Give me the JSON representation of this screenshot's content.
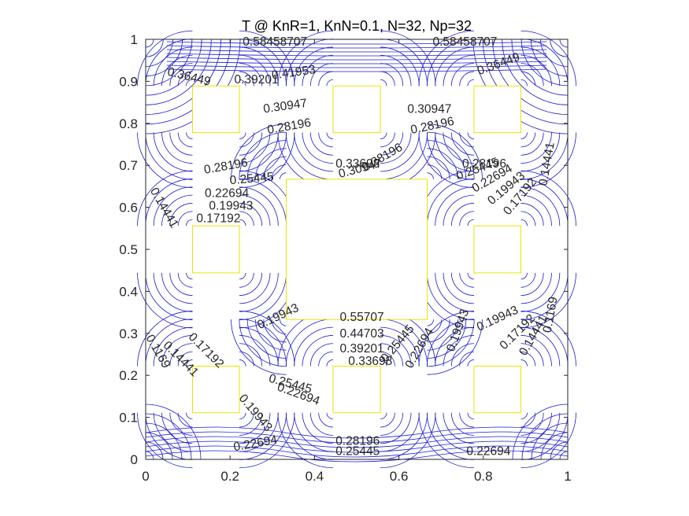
{
  "chart_data": {
    "type": "contour",
    "title": "T @ KnR=1, KnN=0.1, N=32, Np=32",
    "xlim": [
      0,
      1
    ],
    "ylim": [
      0,
      1
    ],
    "xticks": [
      0,
      0.2,
      0.4,
      0.6,
      0.8,
      1
    ],
    "yticks": [
      0,
      0.1,
      0.2,
      0.3,
      0.4,
      0.5,
      0.6,
      0.7,
      0.8,
      0.9,
      1
    ],
    "xtick_labels": [
      "0",
      "0.2",
      "0.4",
      "0.6",
      "0.8",
      "1"
    ],
    "ytick_labels": [
      "0",
      "0.1",
      "0.2",
      "0.3",
      "0.4",
      "0.5",
      "0.6",
      "0.7",
      "0.8",
      "0.9",
      "1"
    ],
    "contour_color": "#1a1ad0",
    "boundary_color": "#e6e600",
    "holes": [
      {
        "x0": 0.111,
        "x1": 0.222,
        "y0": 0.778,
        "y1": 0.889
      },
      {
        "x0": 0.444,
        "x1": 0.556,
        "y0": 0.778,
        "y1": 0.889
      },
      {
        "x0": 0.778,
        "x1": 0.889,
        "y0": 0.778,
        "y1": 0.889
      },
      {
        "x0": 0.111,
        "x1": 0.222,
        "y0": 0.444,
        "y1": 0.556
      },
      {
        "x0": 0.333,
        "x1": 0.667,
        "y0": 0.333,
        "y1": 0.667
      },
      {
        "x0": 0.778,
        "x1": 0.889,
        "y0": 0.444,
        "y1": 0.556
      },
      {
        "x0": 0.111,
        "x1": 0.222,
        "y0": 0.111,
        "y1": 0.222
      },
      {
        "x0": 0.444,
        "x1": 0.556,
        "y0": 0.111,
        "y1": 0.222
      },
      {
        "x0": 0.778,
        "x1": 0.889,
        "y0": 0.111,
        "y1": 0.222
      }
    ],
    "contour_labels": [
      {
        "text": "0.58458707",
        "x": 0.23,
        "y": 0.985,
        "angle": 0
      },
      {
        "text": "0.58458707",
        "x": 0.68,
        "y": 0.985,
        "angle": 0
      },
      {
        "text": "0.36449",
        "x": 0.05,
        "y": 0.915,
        "angle": 14
      },
      {
        "text": "0.39201",
        "x": 0.21,
        "y": 0.895,
        "angle": 0
      },
      {
        "text": "0.41953",
        "x": 0.3,
        "y": 0.905,
        "angle": -8
      },
      {
        "text": "0.30947",
        "x": 0.28,
        "y": 0.825,
        "angle": -8
      },
      {
        "text": "0.28196",
        "x": 0.29,
        "y": 0.775,
        "angle": -10
      },
      {
        "text": "0.30947",
        "x": 0.62,
        "y": 0.825,
        "angle": 0
      },
      {
        "text": "0.28196",
        "x": 0.63,
        "y": 0.775,
        "angle": -12
      },
      {
        "text": "0.36449",
        "x": 0.79,
        "y": 0.915,
        "angle": -20
      },
      {
        "text": "0.28196",
        "x": 0.14,
        "y": 0.68,
        "angle": -10
      },
      {
        "text": "0.25445",
        "x": 0.2,
        "y": 0.655,
        "angle": -5
      },
      {
        "text": "0.22694",
        "x": 0.14,
        "y": 0.625,
        "angle": 0
      },
      {
        "text": "0.19943",
        "x": 0.15,
        "y": 0.595,
        "angle": 0
      },
      {
        "text": "0.17192",
        "x": 0.12,
        "y": 0.565,
        "angle": 0
      },
      {
        "text": "0.14441",
        "x": 0.01,
        "y": 0.64,
        "angle": 60
      },
      {
        "text": "0.33698",
        "x": 0.45,
        "y": 0.695,
        "angle": 0
      },
      {
        "text": "0.30947",
        "x": 0.46,
        "y": 0.67,
        "angle": -15
      },
      {
        "text": "0.28196",
        "x": 0.52,
        "y": 0.685,
        "angle": -30
      },
      {
        "text": "0.28196",
        "x": 0.75,
        "y": 0.695,
        "angle": 0
      },
      {
        "text": "0.25445",
        "x": 0.74,
        "y": 0.665,
        "angle": -20
      },
      {
        "text": "0.22694",
        "x": 0.78,
        "y": 0.635,
        "angle": -30
      },
      {
        "text": "0.19943",
        "x": 0.82,
        "y": 0.605,
        "angle": -40
      },
      {
        "text": "0.17192",
        "x": 0.86,
        "y": 0.58,
        "angle": -50
      },
      {
        "text": "0.14441",
        "x": 0.95,
        "y": 0.65,
        "angle": -80
      },
      {
        "text": "0.55707",
        "x": 0.46,
        "y": 0.33,
        "angle": 0
      },
      {
        "text": "0.44703",
        "x": 0.46,
        "y": 0.29,
        "angle": 0
      },
      {
        "text": "0.39201",
        "x": 0.46,
        "y": 0.255,
        "angle": 0
      },
      {
        "text": "0.33698",
        "x": 0.48,
        "y": 0.225,
        "angle": 0
      },
      {
        "text": "0.25445",
        "x": 0.57,
        "y": 0.23,
        "angle": -50
      },
      {
        "text": "0.22694",
        "x": 0.63,
        "y": 0.215,
        "angle": -60
      },
      {
        "text": "0.19943",
        "x": 0.73,
        "y": 0.255,
        "angle": -70
      },
      {
        "text": "0.19943",
        "x": 0.27,
        "y": 0.31,
        "angle": -25
      },
      {
        "text": "0.17192",
        "x": 0.1,
        "y": 0.29,
        "angle": 45
      },
      {
        "text": "0.14441",
        "x": 0.04,
        "y": 0.27,
        "angle": 45
      },
      {
        "text": "0.1169",
        "x": 0.0,
        "y": 0.29,
        "angle": 60
      },
      {
        "text": "0.25445",
        "x": 0.29,
        "y": 0.185,
        "angle": 15
      },
      {
        "text": "0.22694",
        "x": 0.31,
        "y": 0.165,
        "angle": 20
      },
      {
        "text": "0.19943",
        "x": 0.22,
        "y": 0.145,
        "angle": 50
      },
      {
        "text": "0.19943",
        "x": 0.79,
        "y": 0.305,
        "angle": -25
      },
      {
        "text": "0.17192",
        "x": 0.85,
        "y": 0.26,
        "angle": -45
      },
      {
        "text": "0.14441",
        "x": 0.9,
        "y": 0.245,
        "angle": -60
      },
      {
        "text": "0.1169",
        "x": 0.96,
        "y": 0.3,
        "angle": -80
      },
      {
        "text": "0.22694",
        "x": 0.21,
        "y": 0.02,
        "angle": -10
      },
      {
        "text": "0.28196",
        "x": 0.45,
        "y": 0.035,
        "angle": 0
      },
      {
        "text": "0.25445",
        "x": 0.45,
        "y": 0.01,
        "angle": 0
      },
      {
        "text": "0.22694",
        "x": 0.76,
        "y": 0.01,
        "angle": 0
      }
    ]
  }
}
